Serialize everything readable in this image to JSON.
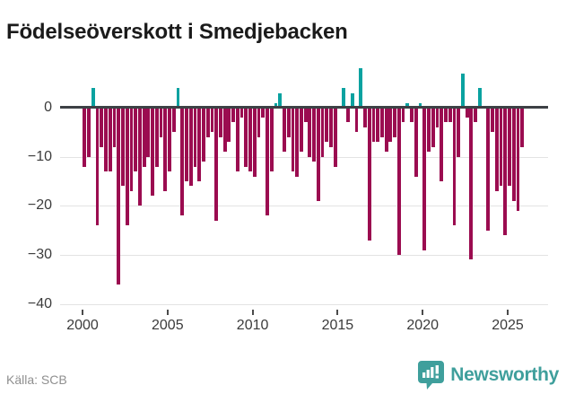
{
  "title": "Födelseöverskott i Smedjebacken",
  "source": "Källa: SCB",
  "branding": {
    "name": "Newsworthy",
    "logo_icon": "bar-chart-badge-icon",
    "color": "#3f9f9c"
  },
  "colors": {
    "negative_bar": "#9b0c50",
    "positive_bar": "#0aa2a0",
    "axis_line": "#3d4145",
    "gridline": "#e3e3e3",
    "tick_text": "#3b3b3b",
    "title_text": "#1b1b1b",
    "source_text": "#8f8f8f"
  },
  "chart_data": {
    "type": "bar",
    "title": "Födelseöverskott i Smedjebacken",
    "xlabel": "",
    "ylabel": "",
    "frequency": "quarterly",
    "start_year": 2000,
    "start_quarter": 1,
    "ylim": [
      -40,
      9
    ],
    "grid": "horizontal",
    "legend": "none",
    "y_ticks": [
      {
        "v": 0,
        "label": "0"
      },
      {
        "v": -10,
        "label": "−10"
      },
      {
        "v": -20,
        "label": "−20"
      },
      {
        "v": -30,
        "label": "−30"
      },
      {
        "v": -40,
        "label": "−40"
      }
    ],
    "x_ticks": [
      {
        "year": 2000,
        "label": "2000"
      },
      {
        "year": 2005,
        "label": "2005"
      },
      {
        "year": 2010,
        "label": "2010"
      },
      {
        "year": 2015,
        "label": "2015"
      },
      {
        "year": 2020,
        "label": "2020"
      },
      {
        "year": 2025,
        "label": "2025"
      }
    ],
    "values": [
      -12,
      -10,
      4,
      -24,
      -8,
      -13,
      -13,
      -8,
      -36,
      -16,
      -24,
      -17,
      -13,
      -20,
      -12,
      -10,
      -18,
      -12,
      -6,
      -17,
      -13,
      -5,
      4,
      -22,
      -15,
      -16,
      -12,
      -15,
      -11,
      -6,
      -5,
      -23,
      -6,
      -9,
      -7,
      -3,
      -13,
      -2,
      -12,
      -13,
      -14,
      -6,
      -2,
      -22,
      -13,
      1,
      3,
      -9,
      -6,
      -13,
      -14,
      -9,
      -3,
      -10,
      -11,
      -19,
      -10,
      -7,
      -8,
      -12,
      0,
      4,
      -3,
      3,
      -5,
      8,
      -4,
      -27,
      -7,
      -7,
      -6,
      -9,
      -7,
      -6,
      -30,
      -3,
      1,
      -3,
      -14,
      1,
      -29,
      -9,
      -8,
      -4,
      -15,
      -3,
      -3,
      -24,
      -10,
      7,
      -2,
      -31,
      -3,
      4,
      0,
      -25,
      -5,
      -17,
      -16,
      -26,
      -16,
      -19,
      -21,
      -8
    ]
  }
}
